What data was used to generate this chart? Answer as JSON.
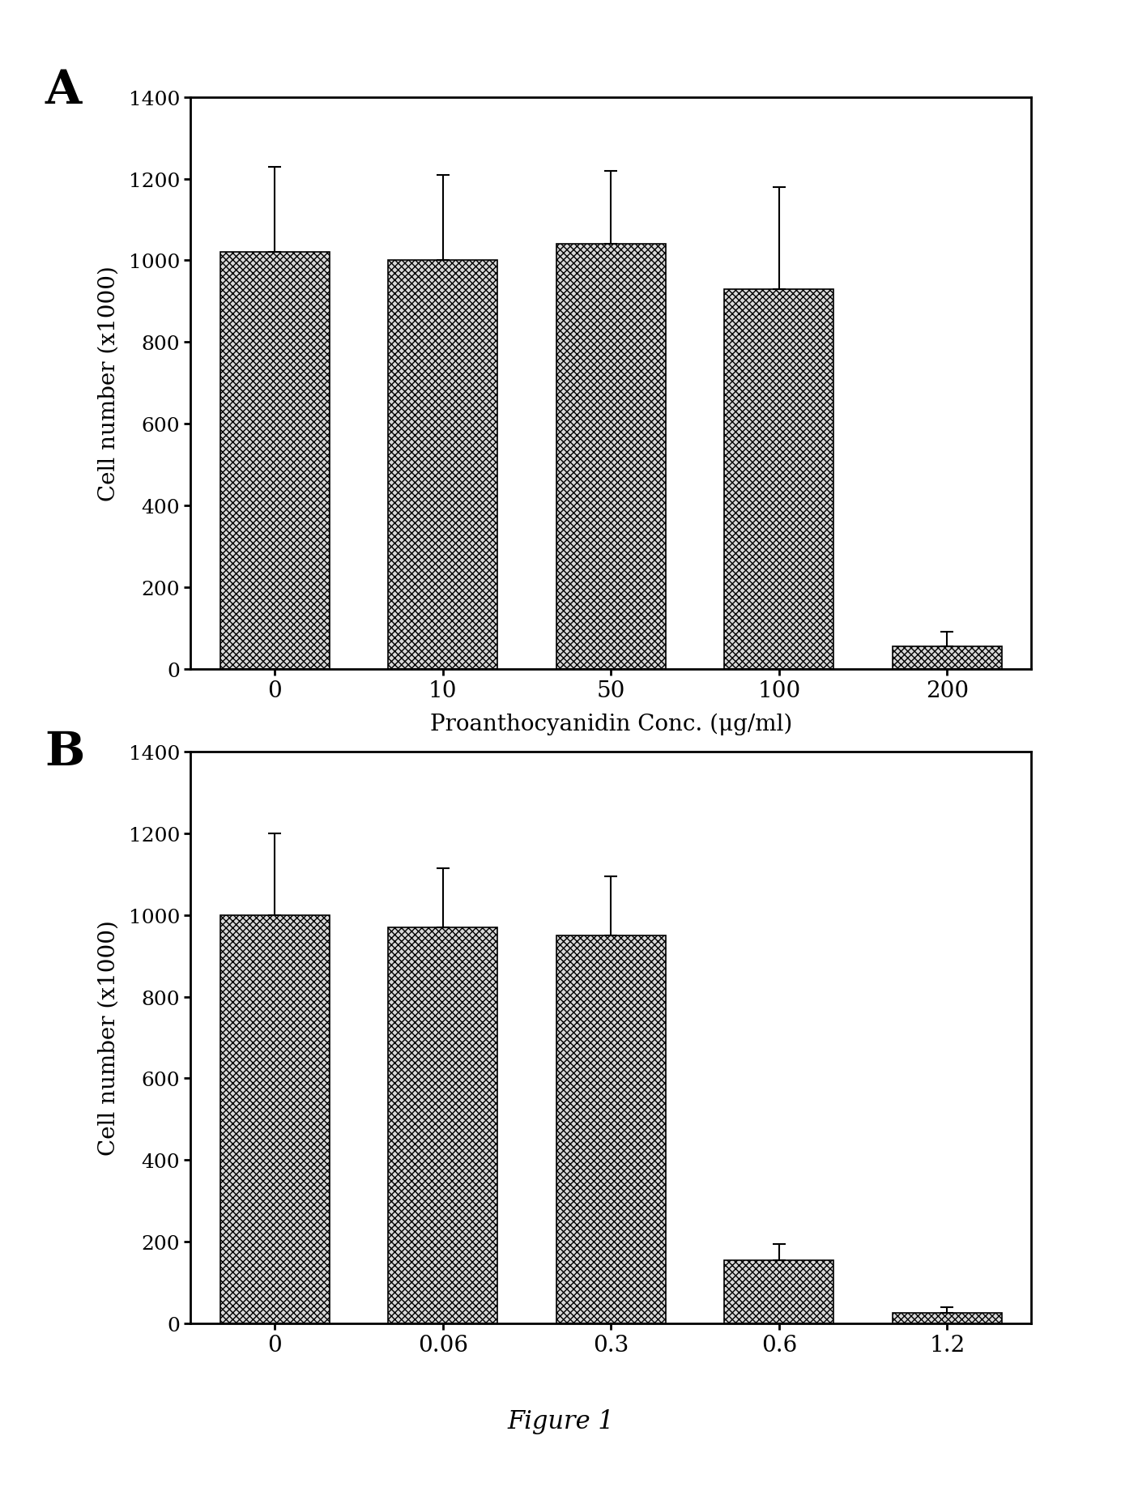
{
  "panel_A": {
    "categories": [
      "0",
      "10",
      "50",
      "100",
      "200"
    ],
    "values": [
      1020,
      1000,
      1040,
      930,
      55
    ],
    "errors": [
      210,
      210,
      180,
      250,
      35
    ],
    "xlabel": "Proanthocyanidin Conc. (μg/ml)",
    "ylabel": "Cell number (x1000)",
    "ylim": [
      0,
      1400
    ],
    "yticks": [
      0,
      200,
      400,
      600,
      800,
      1000,
      1200,
      1400
    ],
    "label": "A"
  },
  "panel_B": {
    "categories": [
      "0",
      "0.06",
      "0.3",
      "0.6",
      "1.2"
    ],
    "values": [
      1000,
      970,
      950,
      155,
      25
    ],
    "errors": [
      200,
      145,
      145,
      40,
      15
    ],
    "xlabel": "",
    "ylabel": "Cell number (x1000)",
    "ylim": [
      0,
      1400
    ],
    "yticks": [
      0,
      200,
      400,
      600,
      800,
      1000,
      1200,
      1400
    ],
    "label": "B"
  },
  "figure_label": "Figure 1",
  "bar_color": "#d8d8d8",
  "bar_hatch": "xxxx",
  "background_color": "#ffffff",
  "figure_bg": "#ffffff",
  "fig_width": 13.84,
  "fig_height": 18.58,
  "dpi": 100
}
